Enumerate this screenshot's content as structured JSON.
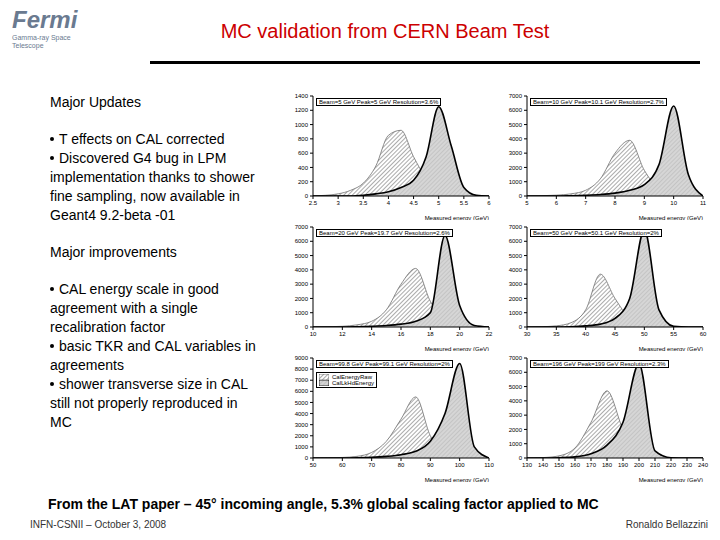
{
  "header": {
    "logo": "Fermi",
    "logo_subtitle": "Gamma-ray Space Telescope",
    "title": "MC validation from CERN Beam Test"
  },
  "sections": [
    {
      "heading": "Major Updates",
      "bullets": [
        "T effects on CAL corrected",
        "Discovered G4 bug in LPM implementation thanks to shower fine sampling, now available in Geant4 9.2-beta -01"
      ]
    },
    {
      "heading": "Major improvements",
      "bullets": [
        "CAL energy scale in good agreement with a single recalibration factor",
        "basic TKR and CAL variables in agreements",
        "shower transverse size in CAL still not properly reproduced in MC"
      ]
    }
  ],
  "conclusion": "From the LAT paper – 45° incoming angle, 5.3% global scaling factor applied to MC",
  "footer": {
    "left": "INFN-CSNII – October 3, 2008",
    "right": "Ronaldo Bellazzini"
  },
  "chart_data": [
    {
      "type": "area",
      "title": "Beam=5 GeV Peak=5 GeV Resolution=3.6%",
      "x_label": "Measured energy (GeV)",
      "x": [
        2.5,
        2.75,
        3,
        3.25,
        3.5,
        3.75,
        4,
        4.25,
        4.5,
        4.75,
        5,
        5.25,
        5.5,
        5.75,
        6
      ],
      "xlim": [
        2.5,
        6
      ],
      "xticks": [
        2.5,
        3,
        3.5,
        4,
        4.5,
        5,
        5.5,
        6
      ],
      "ylim": [
        0,
        1400
      ],
      "yticks": [
        0,
        200,
        400,
        600,
        800,
        1000,
        1200,
        1400
      ],
      "series": [
        {
          "color": "#707070",
          "values": [
            0,
            10,
            30,
            80,
            180,
            420,
            850,
            920,
            550,
            250,
            100,
            30,
            10,
            0,
            0
          ]
        },
        {
          "color": "#000000",
          "values": [
            0,
            0,
            0,
            0,
            10,
            30,
            60,
            120,
            220,
            550,
            1250,
            700,
            120,
            10,
            0
          ]
        }
      ]
    },
    {
      "type": "area",
      "title": "Beam=10 GeV Peak=10.1 GeV Resolution=2.7%",
      "x_label": "Measured energy (GeV)",
      "x": [
        5,
        5.5,
        6,
        6.5,
        7,
        7.5,
        8,
        8.5,
        9,
        9.5,
        10,
        10.5,
        11
      ],
      "xlim": [
        5,
        11
      ],
      "xticks": [
        5,
        6,
        7,
        8,
        9,
        10,
        11
      ],
      "ylim": [
        0,
        7000
      ],
      "yticks": [
        0,
        1000,
        2000,
        3000,
        4000,
        5000,
        6000,
        7000
      ],
      "series": [
        {
          "color": "#707070",
          "values": [
            0,
            20,
            60,
            150,
            400,
            1200,
            3000,
            3900,
            1800,
            500,
            150,
            40,
            0
          ]
        },
        {
          "color": "#000000",
          "values": [
            0,
            0,
            0,
            20,
            50,
            100,
            200,
            400,
            800,
            2200,
            6300,
            1500,
            0
          ]
        }
      ]
    },
    {
      "type": "area",
      "title": "Beam=20 GeV Peak=19.7 GeV Resolution=2.6%",
      "x_label": "Measured energy (GeV)",
      "x": [
        10,
        11,
        12,
        13,
        14,
        15,
        16,
        17,
        18,
        19,
        20,
        21,
        22
      ],
      "xlim": [
        10,
        22
      ],
      "xticks": [
        10,
        12,
        14,
        16,
        18,
        20,
        22
      ],
      "ylim": [
        0,
        7000
      ],
      "yticks": [
        0,
        1000,
        2000,
        3000,
        4000,
        5000,
        6000,
        7000
      ],
      "series": [
        {
          "color": "#707070",
          "values": [
            0,
            20,
            50,
            150,
            400,
            1200,
            3000,
            4100,
            1800,
            400,
            100,
            30,
            0
          ]
        },
        {
          "color": "#000000",
          "values": [
            0,
            0,
            0,
            20,
            50,
            100,
            200,
            400,
            1000,
            6400,
            1500,
            100,
            0
          ]
        }
      ]
    },
    {
      "type": "area",
      "title": "Beam=50 GeV Peak=50.1 GeV Resolution=2%",
      "x_label": "Measured energy (GeV)",
      "x": [
        30,
        32.5,
        35,
        37.5,
        40,
        42.5,
        45,
        47.5,
        50,
        52.5,
        55,
        57.5,
        60
      ],
      "xlim": [
        30,
        60
      ],
      "xticks": [
        30,
        35,
        40,
        45,
        50,
        55,
        60
      ],
      "ylim": [
        0,
        7000
      ],
      "yticks": [
        0,
        1000,
        2000,
        3000,
        4000,
        5000,
        6000,
        7000
      ],
      "series": [
        {
          "color": "#707070",
          "values": [
            0,
            20,
            80,
            300,
            1200,
            3700,
            2000,
            600,
            150,
            30,
            0,
            0,
            0
          ]
        },
        {
          "color": "#000000",
          "values": [
            0,
            0,
            0,
            20,
            80,
            200,
            600,
            2000,
            6800,
            1200,
            50,
            0,
            0
          ]
        }
      ]
    },
    {
      "type": "area",
      "title": "Beam=99.8 GeV Peak=99.1 GeV Resolution=2%",
      "x_label": "Measured energy (GeV)",
      "x": [
        50,
        55,
        60,
        65,
        70,
        75,
        80,
        85,
        90,
        95,
        100,
        105,
        110
      ],
      "xlim": [
        50,
        110
      ],
      "xticks": [
        50,
        60,
        70,
        80,
        90,
        100,
        110
      ],
      "ylim": [
        0,
        9000
      ],
      "yticks": [
        0,
        1000,
        2000,
        3000,
        4000,
        5000,
        6000,
        7000,
        8000,
        9000
      ],
      "legend": "upper left",
      "series": [
        {
          "name": "CalEnergyRaw",
          "color": "#707070",
          "values": [
            0,
            20,
            50,
            150,
            500,
            1500,
            3500,
            5500,
            2000,
            400,
            60,
            0,
            0
          ]
        },
        {
          "name": "CalLkHdEnergy",
          "color": "#000000",
          "values": [
            0,
            0,
            0,
            20,
            60,
            150,
            300,
            600,
            1500,
            4000,
            8500,
            1000,
            0
          ]
        }
      ]
    },
    {
      "type": "area",
      "title": "Beam=196 GeV Peak=199 GeV Resolution=2.3%",
      "x_label": "Measured energy (GeV)",
      "x": [
        130,
        140,
        150,
        160,
        170,
        180,
        190,
        200,
        210,
        220,
        230,
        240
      ],
      "xlim": [
        130,
        240
      ],
      "xticks": [
        130,
        140,
        150,
        160,
        170,
        180,
        190,
        200,
        210,
        220,
        230,
        240
      ],
      "ylim": [
        0,
        7000
      ],
      "yticks": [
        0,
        1000,
        2000,
        3000,
        4000,
        5000,
        6000,
        7000
      ],
      "series": [
        {
          "color": "#707070",
          "values": [
            0,
            30,
            150,
            700,
            2500,
            4700,
            2000,
            300,
            30,
            0,
            0,
            0
          ]
        },
        {
          "color": "#000000",
          "values": [
            0,
            0,
            20,
            80,
            300,
            900,
            2500,
            6600,
            500,
            20,
            0,
            0
          ]
        }
      ]
    }
  ]
}
